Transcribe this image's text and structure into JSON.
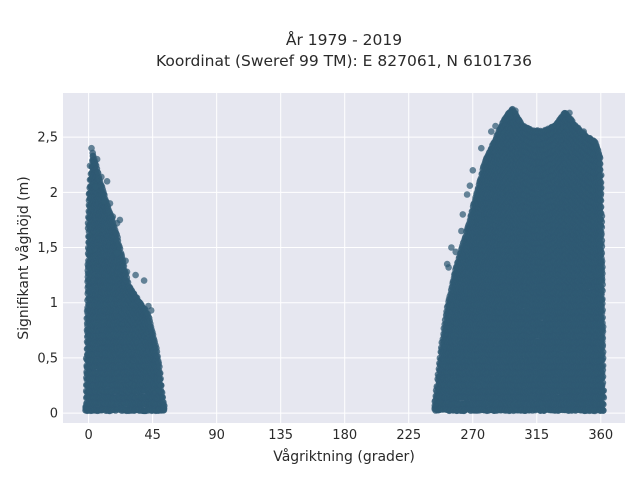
{
  "chart_data": {
    "type": "scatter",
    "title_lines": [
      "År 1979 - 2019",
      "Koordinat (Sweref 99 TM): E 827061, N 6101736"
    ],
    "xlabel": "Vågriktning (grader)",
    "ylabel": "Signifikant våghöjd (m)",
    "xlim": [
      -18,
      377
    ],
    "ylim": [
      -0.09,
      2.9
    ],
    "x_ticks": [
      0,
      45,
      90,
      135,
      180,
      225,
      270,
      315,
      360
    ],
    "x_tick_labels": [
      "0",
      "45",
      "90",
      "135",
      "180",
      "225",
      "270",
      "315",
      "360"
    ],
    "y_ticks": [
      0,
      0.5,
      1,
      1.5,
      2,
      2.5
    ],
    "y_tick_labels": [
      "0",
      "0,5",
      "1",
      "1,5",
      "2",
      "2,5"
    ],
    "grid": true,
    "legend": "none",
    "marker_color": "#2f5a73",
    "plot_background": "#e6e7f0",
    "series": [
      {
        "clusters": [
          {
            "x_range": [
              -2,
              53
            ],
            "envelope": [
              [
                -2,
                0.06
              ],
              [
                0,
                1.95
              ],
              [
                3,
                2.35
              ],
              [
                8,
                2.1
              ],
              [
                14,
                1.85
              ],
              [
                20,
                1.6
              ],
              [
                28,
                1.15
              ],
              [
                36,
                1.0
              ],
              [
                42,
                0.88
              ],
              [
                47,
                0.62
              ],
              [
                50,
                0.4
              ],
              [
                52,
                0.15
              ],
              [
                53,
                0.06
              ]
            ],
            "outliers": [
              [
                2,
                2.4
              ],
              [
                3,
                2.33
              ],
              [
                4,
                2.27
              ],
              [
                1,
                2.24
              ],
              [
                6,
                2.3
              ],
              [
                5,
                2.05
              ],
              [
                9,
                2.14
              ],
              [
                13,
                2.1
              ],
              [
                11,
                1.92
              ],
              [
                15,
                1.9
              ],
              [
                17,
                1.78
              ],
              [
                20,
                1.72
              ],
              [
                22,
                1.75
              ],
              [
                20,
                1.45
              ],
              [
                26,
                1.38
              ],
              [
                27,
                1.28
              ],
              [
                33,
                1.25
              ],
              [
                39,
                1.2
              ],
              [
                42,
                0.97
              ],
              [
                44,
                0.93
              ]
            ]
          },
          {
            "x_range": [
              243,
              362
            ],
            "envelope": [
              [
                243,
                0.05
              ],
              [
                248,
                0.6
              ],
              [
                252,
                0.95
              ],
              [
                258,
                1.3
              ],
              [
                265,
                1.6
              ],
              [
                270,
                1.85
              ],
              [
                278,
                2.25
              ],
              [
                285,
                2.45
              ],
              [
                292,
                2.65
              ],
              [
                298,
                2.75
              ],
              [
                305,
                2.6
              ],
              [
                312,
                2.55
              ],
              [
                320,
                2.55
              ],
              [
                328,
                2.6
              ],
              [
                335,
                2.72
              ],
              [
                342,
                2.6
              ],
              [
                350,
                2.5
              ],
              [
                356,
                2.45
              ],
              [
                360,
                2.3
              ],
              [
                361,
                1.5
              ],
              [
                362,
                0.2
              ],
              [
                361,
                0.02
              ]
            ],
            "outliers": [
              [
                252,
                1.35
              ],
              [
                255,
                1.5
              ],
              [
                253,
                1.32
              ],
              [
                258,
                1.46
              ],
              [
                262,
                1.65
              ],
              [
                263,
                1.8
              ],
              [
                266,
                1.98
              ],
              [
                270,
                2.2
              ],
              [
                268,
                2.06
              ],
              [
                276,
                2.4
              ],
              [
                283,
                2.55
              ],
              [
                286,
                2.6
              ],
              [
                296,
                2.72
              ],
              [
                300,
                2.74
              ],
              [
                338,
                2.72
              ],
              [
                348,
                2.55
              ],
              [
                357,
                2.42
              ]
            ]
          }
        ]
      }
    ]
  }
}
